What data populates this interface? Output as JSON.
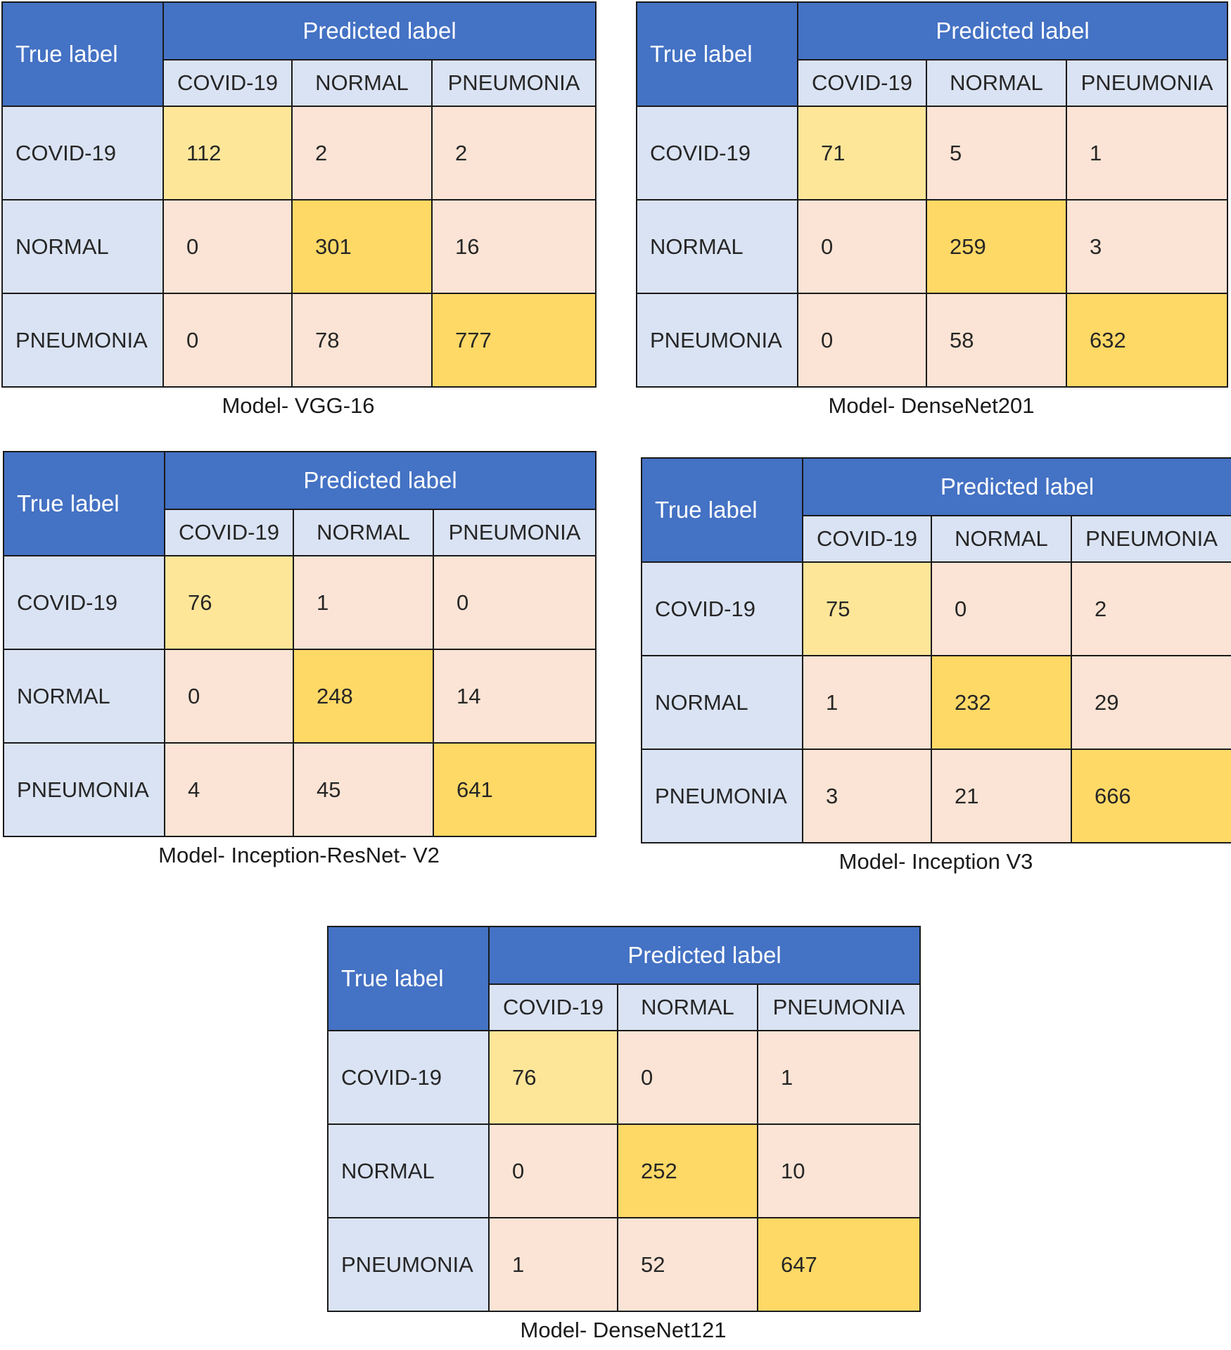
{
  "chart_data": [
    {
      "type": "table",
      "title": "Model- VGG-16",
      "corner_label": "True label",
      "column_group_label": "Predicted label",
      "columns": [
        "COVID-19",
        "NORMAL",
        "PNEUMONIA"
      ],
      "rows": [
        "COVID-19",
        "NORMAL",
        "PNEUMONIA"
      ],
      "values": [
        [
          112,
          2,
          2
        ],
        [
          0,
          301,
          16
        ],
        [
          0,
          78,
          777
        ]
      ]
    },
    {
      "type": "table",
      "title": "Model- DenseNet201",
      "corner_label": "True label",
      "column_group_label": "Predicted label",
      "columns": [
        "COVID-19",
        "NORMAL",
        "PNEUMONIA"
      ],
      "rows": [
        "COVID-19",
        "NORMAL",
        "PNEUMONIA"
      ],
      "values": [
        [
          71,
          5,
          1
        ],
        [
          0,
          259,
          3
        ],
        [
          0,
          58,
          632
        ]
      ]
    },
    {
      "type": "table",
      "title": "Model- Inception-ResNet- V2",
      "corner_label": "True label",
      "column_group_label": "Predicted label",
      "columns": [
        "COVID-19",
        "NORMAL",
        "PNEUMONIA"
      ],
      "rows": [
        "COVID-19",
        "NORMAL",
        "PNEUMONIA"
      ],
      "values": [
        [
          76,
          1,
          0
        ],
        [
          0,
          248,
          14
        ],
        [
          4,
          45,
          641
        ]
      ]
    },
    {
      "type": "table",
      "title": "Model- Inception V3",
      "corner_label": "True label",
      "column_group_label": "Predicted label",
      "columns": [
        "COVID-19",
        "NORMAL",
        "PNEUMONIA"
      ],
      "rows": [
        "COVID-19",
        "NORMAL",
        "PNEUMONIA"
      ],
      "values": [
        [
          75,
          0,
          2
        ],
        [
          1,
          232,
          29
        ],
        [
          3,
          21,
          666
        ]
      ]
    },
    {
      "type": "table",
      "title": "Model- DenseNet121",
      "corner_label": "True label",
      "column_group_label": "Predicted label",
      "columns": [
        "COVID-19",
        "NORMAL",
        "PNEUMONIA"
      ],
      "rows": [
        "COVID-19",
        "NORMAL",
        "PNEUMONIA"
      ],
      "values": [
        [
          76,
          0,
          1
        ],
        [
          0,
          252,
          10
        ],
        [
          1,
          52,
          647
        ]
      ]
    }
  ],
  "colors": {
    "header_blue": "#4472c4",
    "label_light_blue": "#dae3f3",
    "off_diagonal_peach": "#fbe4d5",
    "diagonal_light_yellow": "#fee699",
    "diagonal_gold": "#ffd966"
  }
}
